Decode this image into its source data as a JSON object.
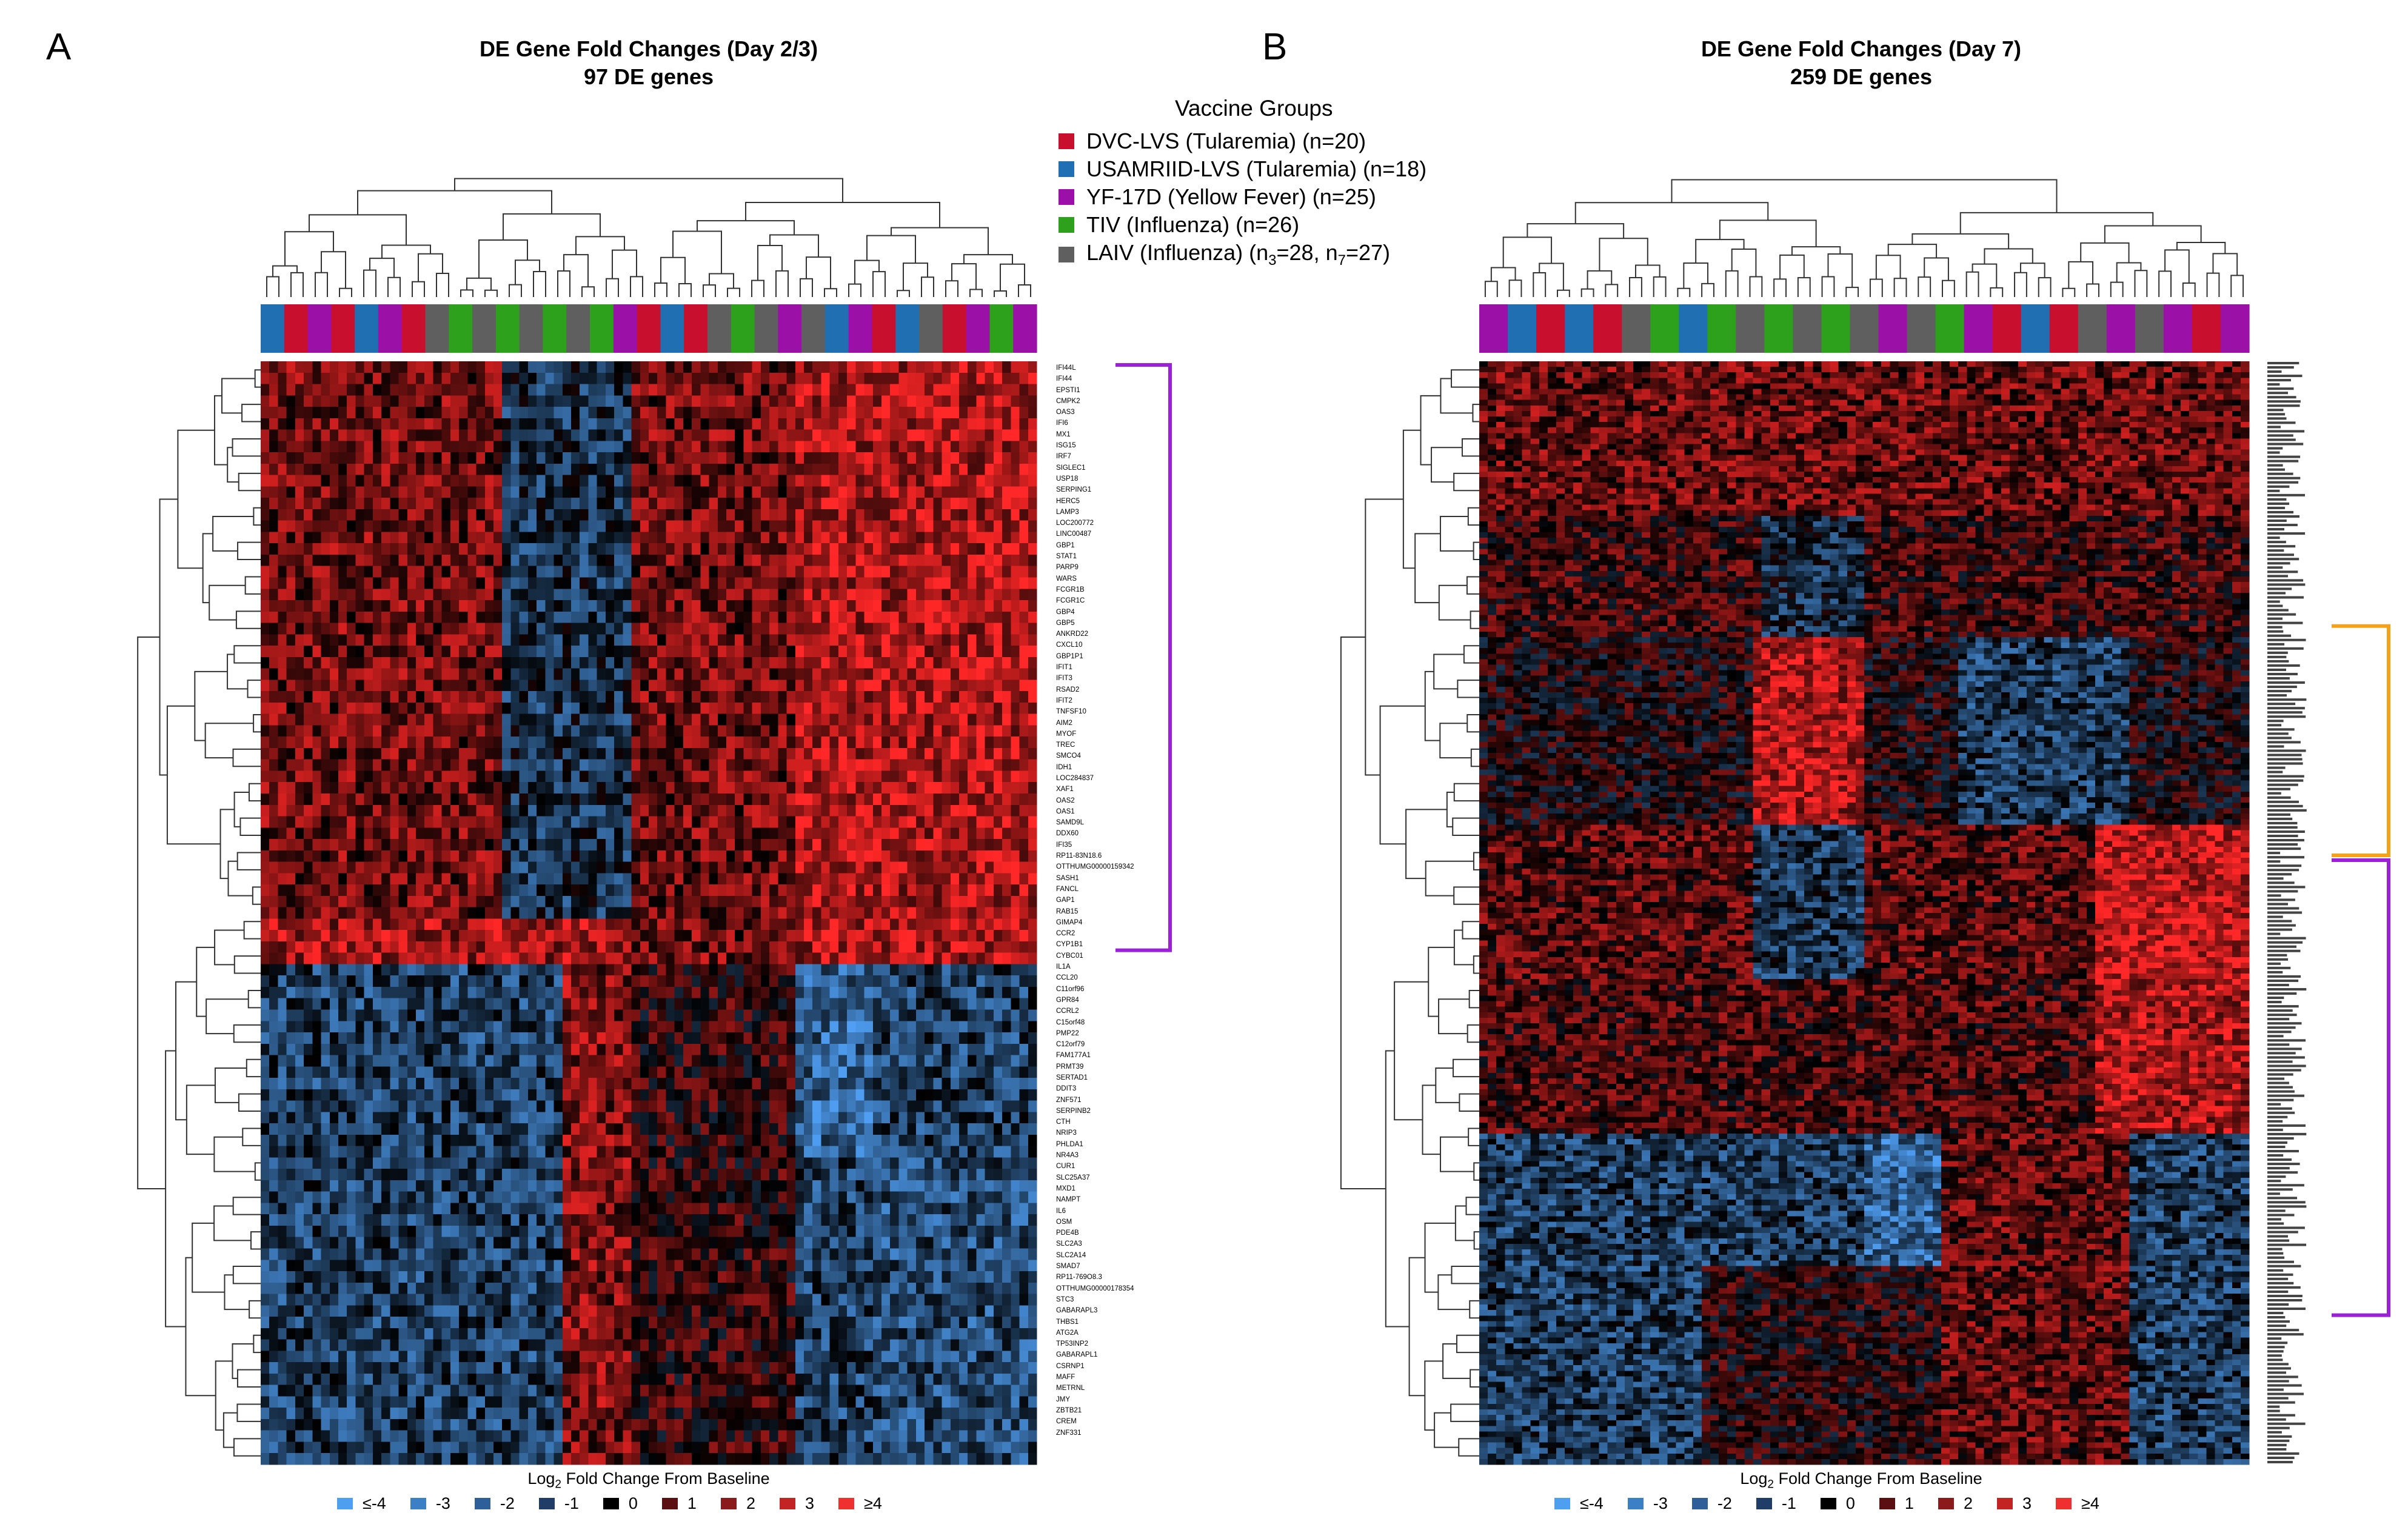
{
  "panels": [
    {
      "letter": "A",
      "title_line1": "DE Gene Fold Changes (Day 2/3)",
      "title_line2": "97 DE genes",
      "scale_label_main": "Log",
      "scale_label_sub": "2",
      "scale_label_rest": " Fold Change From Baseline"
    },
    {
      "letter": "B",
      "title_line1": "DE Gene Fold Changes (Day 7)",
      "title_line2": "259 DE genes",
      "scale_label_main": "Log",
      "scale_label_sub": "2",
      "scale_label_rest": " Fold Change From Baseline"
    }
  ],
  "legend": {
    "title": "Vaccine Groups",
    "items": [
      {
        "label": "DVC-LVS (Tularemia) (n=20)",
        "color": "#c8102e"
      },
      {
        "label": "USAMRIID-LVS (Tularemia) (n=18)",
        "color": "#1f6fb2"
      },
      {
        "label": "YF-17D (Yellow Fever) (n=25)",
        "color": "#9b11a8"
      },
      {
        "label": "TIV (Influenza) (n=26)",
        "color": "#2ea11c"
      },
      {
        "label": "LAIV (Influenza) (n",
        "label_sub1": "3",
        "label_mid": "=28, n",
        "label_sub2": "7",
        "label_end": "=27)",
        "color": "#5f5f5f"
      }
    ]
  },
  "color_scale": [
    {
      "label": "≤-4",
      "color": "#4f9ff0"
    },
    {
      "label": "-3",
      "color": "#3b7fc4"
    },
    {
      "label": "-2",
      "color": "#2e5f99"
    },
    {
      "label": "-1",
      "color": "#1f3d66"
    },
    {
      "label": "0",
      "color": "#000000"
    },
    {
      "label": "1",
      "color": "#5a1010"
    },
    {
      "label": "2",
      "color": "#8b1a1a"
    },
    {
      "label": "3",
      "color": "#c42323"
    },
    {
      "label": "≥4",
      "color": "#f03030"
    }
  ],
  "bracket_colors": {
    "interferon": "#9b21d8",
    "orange": "#f5a21b"
  },
  "chart_data": [
    {
      "type": "heatmap",
      "title": "DE Gene Fold Changes (Day 2/3)",
      "subtitle": "97 DE genes",
      "xlabel": "",
      "ylabel": "",
      "colorbar_label": "Log2 Fold Change From Baseline",
      "value_range": [
        -4,
        4
      ],
      "genes": [
        "IFI44L",
        "IFI44",
        "EPSTI1",
        "CMPK2",
        "OAS3",
        "IFI6",
        "MX1",
        "ISG15",
        "IRF7",
        "SIGLEC1",
        "USP18",
        "SERPING1",
        "HERC5",
        "LAMP3",
        "LOC200772",
        "LINC00487",
        "GBP1",
        "STAT1",
        "PARP9",
        "WARS",
        "FCGR1B",
        "FCGR1C",
        "GBP4",
        "GBP5",
        "ANKRD22",
        "CXCL10",
        "GBP1P1",
        "IFIT1",
        "IFIT3",
        "RSAD2",
        "IFIT2",
        "TNFSF10",
        "AIM2",
        "MYOF",
        "TREC",
        "SMCO4",
        "IDH1",
        "LOC284837",
        "XAF1",
        "OAS2",
        "OAS1",
        "SAMD9L",
        "DDX60",
        "IFI35",
        "RP11-83N18.6",
        "OTTHUMG00000159342",
        "SASH1",
        "FANCL",
        "GAP1",
        "RAB15",
        "GIMAP4",
        "CCR2",
        "CYP1B1",
        "CYBC01",
        "IL1A",
        "CCL20",
        "C11orf96",
        "GPR84",
        "CCRL2",
        "C15orf48",
        "PMP22",
        "C12orf79",
        "FAM177A1",
        "PRMT39",
        "SERTAD1",
        "DDIT3",
        "ZNF571",
        "SERPINB2",
        "CTH",
        "NRIP3",
        "PHLDA1",
        "NR4A3",
        "CUR1",
        "SLC25A37",
        "MXD1",
        "NAMPT",
        "IL6",
        "OSM",
        "PDE4B",
        "SLC2A3",
        "SLC2A14",
        "SMAD7",
        "RP11-769O8.3",
        "OTTHUMG00000178354",
        "STC3",
        "GABARAPL3",
        "THBS1",
        "ATG2A",
        "TP53INP2",
        "GABARAPL1",
        "CSRNP1",
        "MAFF",
        "METRNL",
        "JMY",
        "ZBTB21",
        "CREM",
        "ZNF331"
      ],
      "column_groups": [
        "USAMRIID-LVS",
        "DVC-LVS",
        "YF-17D",
        "DVC-LVS",
        "USAMRIID-LVS",
        "YF-17D",
        "DVC-LVS",
        "LAIV",
        "TIV",
        "LAIV",
        "TIV",
        "LAIV",
        "TIV",
        "LAIV",
        "TIV",
        "YF-17D",
        "DVC-LVS",
        "USAMRIID-LVS",
        "DVC-LVS",
        "LAIV",
        "TIV",
        "LAIV",
        "YF-17D",
        "LAIV",
        "USAMRIID-LVS",
        "YF-17D",
        "DVC-LVS",
        "USAMRIID-LVS",
        "LAIV",
        "DVC-LVS",
        "YF-17D",
        "TIV",
        "YF-17D"
      ],
      "interferon_bracket_rows": [
        0,
        51
      ]
    },
    {
      "type": "heatmap",
      "title": "DE Gene Fold Changes (Day 7)",
      "subtitle": "259 DE genes",
      "xlabel": "",
      "ylabel": "",
      "colorbar_label": "Log2 Fold Change From Baseline",
      "value_range": [
        -4,
        4
      ],
      "n_genes": 259,
      "column_groups": [
        "YF-17D",
        "USAMRIID-LVS",
        "DVC-LVS",
        "USAMRIID-LVS",
        "DVC-LVS",
        "LAIV",
        "TIV",
        "USAMRIID-LVS",
        "TIV",
        "LAIV",
        "TIV",
        "LAIV",
        "TIV",
        "LAIV",
        "YF-17D",
        "LAIV",
        "TIV",
        "YF-17D",
        "DVC-LVS",
        "USAMRIID-LVS",
        "DVC-LVS",
        "LAIV",
        "YF-17D",
        "LAIV",
        "YF-17D",
        "DVC-LVS",
        "YF-17D"
      ],
      "orange_bracket_fraction": [
        0.24,
        0.45
      ],
      "purple_bracket_fraction": [
        0.45,
        0.98
      ]
    }
  ]
}
